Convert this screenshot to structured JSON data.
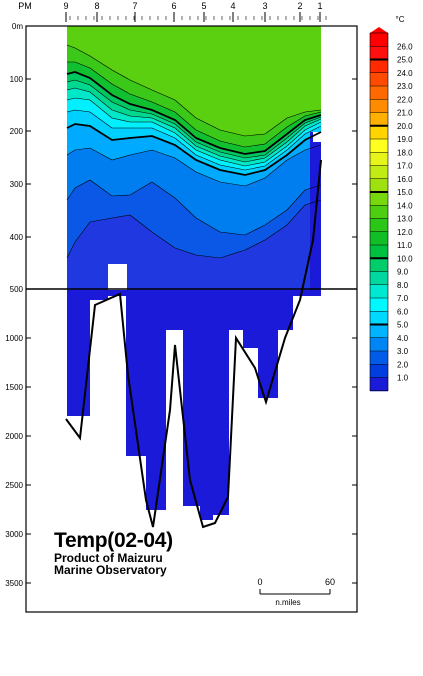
{
  "chart_data": {
    "type": "heatmap",
    "title": "Temp(02-04)",
    "subtitle_lines": [
      "Product of Maizuru",
      "Marine Observatory"
    ],
    "top_axis": {
      "label": "PM",
      "stations": [
        "9",
        "8",
        "7",
        "6",
        "5",
        "4",
        "3",
        "2",
        "1"
      ]
    },
    "y_axis": {
      "upper_section": {
        "ticks": [
          "0m",
          "100",
          "200",
          "300",
          "400"
        ],
        "range_m": [
          0,
          500
        ]
      },
      "lower_section": {
        "ticks": [
          "1000",
          "1500",
          "2000",
          "2500",
          "3000",
          "3500"
        ],
        "range_m": [
          500,
          3500
        ]
      },
      "break_label": "500"
    },
    "scale_bar": {
      "start": "0",
      "end": "60",
      "unit": "n.miles"
    },
    "colorbar": {
      "unit": "°C",
      "labels": [
        "26.0",
        "25.0",
        "24.0",
        "23.0",
        "22.0",
        "21.0",
        "20.0",
        "19.0",
        "18.0",
        "17.0",
        "16.0",
        "15.0",
        "14.0",
        "13.0",
        "12.0",
        "11.0",
        "10.0",
        "9.0",
        "8.0",
        "7.0",
        "6.0",
        "5.0",
        "4.0",
        "3.0",
        "2.0",
        "1.0"
      ],
      "colors": [
        "#ff0000",
        "#ff1010",
        "#ff2a00",
        "#ff4a00",
        "#ff6a00",
        "#ff8c00",
        "#ffb000",
        "#ffd400",
        "#ffff20",
        "#e6f41a",
        "#c2ea14",
        "#9ee010",
        "#78d80e",
        "#4ece10",
        "#2ac618",
        "#12be26",
        "#00c040",
        "#00cc6a",
        "#00d8a0",
        "#00e8d0",
        "#00f8ff",
        "#00d8ff",
        "#00b4ff",
        "#0086f4",
        "#005ce8",
        "#003ee0",
        "#1a1ad8"
      ]
    },
    "layers": [
      {
        "temp_min": 0,
        "color": "#1a1ad8"
      },
      {
        "temp_min": 1,
        "color": "#2038e0"
      },
      {
        "temp_min": 2,
        "color": "#0b58e6"
      },
      {
        "temp_min": 3,
        "color": "#007ef0"
      },
      {
        "temp_min": 4,
        "color": "#00aaff"
      },
      {
        "temp_min": 5,
        "color": "#00d0ff"
      },
      {
        "temp_min": 6,
        "color": "#00f0ff"
      },
      {
        "temp_min": 7,
        "color": "#00e8c8"
      },
      {
        "temp_min": 8,
        "color": "#00d890"
      },
      {
        "temp_min": 9,
        "color": "#00c860"
      },
      {
        "temp_min": 10,
        "color": "#10c030"
      },
      {
        "temp_min": 13,
        "color": "#3cc818"
      },
      {
        "temp_min": 15,
        "color": "#5ad010"
      }
    ]
  }
}
